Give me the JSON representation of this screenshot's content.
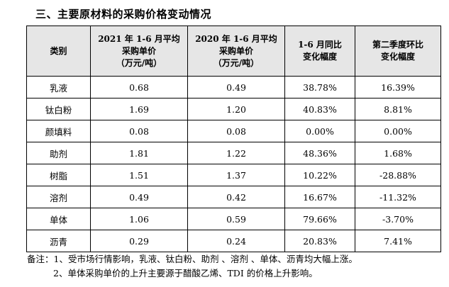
{
  "heading": "三、主要原材料的采购价格变动情况",
  "table": {
    "headers": [
      [
        "类别"
      ],
      [
        "2021 年 1-6 月平均",
        "采购单价",
        "（万元/吨）"
      ],
      [
        "2020 年 1-6 月平均",
        "采购单价",
        "（万元/吨）"
      ],
      [
        "1-6 月同比",
        "变化幅度"
      ],
      [
        "第二季度环比",
        "变化幅度"
      ]
    ],
    "rows": [
      [
        "乳液",
        "0.68",
        "0.49",
        "38.78%",
        "16.39%"
      ],
      [
        "钛白粉",
        "1.69",
        "1.20",
        "40.83%",
        "8.81%"
      ],
      [
        "颜填料",
        "0.08",
        "0.08",
        "0.00%",
        "0.00%"
      ],
      [
        "助剂",
        "1.81",
        "1.22",
        "48.36%",
        "1.68%"
      ],
      [
        "树脂",
        "1.51",
        "1.37",
        "10.22%",
        "-28.88%"
      ],
      [
        "溶剂",
        "0.49",
        "0.42",
        "16.67%",
        "-11.32%"
      ],
      [
        "单体",
        "1.06",
        "0.59",
        "79.66%",
        "-3.70%"
      ],
      [
        "沥青",
        "0.29",
        "0.24",
        "20.83%",
        "7.41%"
      ]
    ]
  },
  "notes": [
    "备注：1、受市场行情影响，乳液、钛白粉、助剂 、溶剂 、单体、沥青均大幅上涨。",
    "2、单体采购单价的上升主要源于醋酸乙烯、TDI 的价格上升影响。"
  ]
}
